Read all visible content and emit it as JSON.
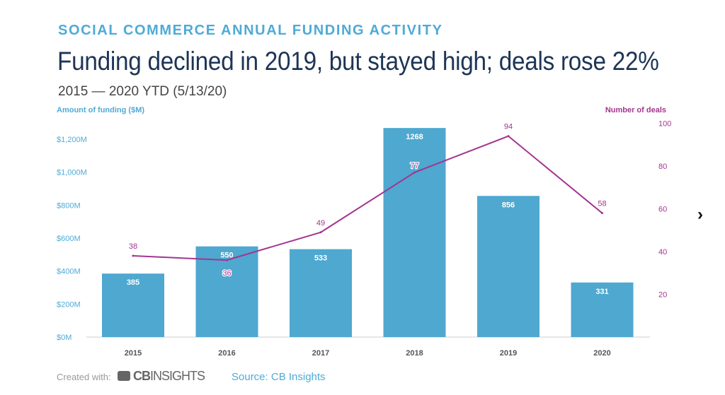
{
  "header": {
    "kicker": "SOCIAL COMMERCE ANNUAL FUNDING ACTIVITY",
    "title": "Funding declined in 2019, but stayed high; deals rose 22%",
    "subtitle": "2015 — 2020 YTD (5/13/20)"
  },
  "footer": {
    "created_with": "Created with:",
    "logo_text_bold": "CB",
    "logo_text": "INSIGHTS",
    "source": "Source: CB Insights"
  },
  "nav": {
    "next_label": "›"
  },
  "colors": {
    "bar": "#4ea8d0",
    "line": "#a3358f",
    "left_axis": "#4faad6",
    "right_axis": "#a3358f"
  },
  "chart_data": {
    "type": "bar+line",
    "categories": [
      "2015",
      "2016",
      "2017",
      "2018",
      "2019",
      "2020"
    ],
    "series": [
      {
        "name": "Amount of funding ($M)",
        "type": "bar",
        "axis": "left",
        "values": [
          385,
          550,
          533,
          1268,
          856,
          331
        ]
      },
      {
        "name": "Number of deals",
        "type": "line",
        "axis": "right",
        "values": [
          38,
          36,
          49,
          77,
          94,
          58
        ]
      }
    ],
    "left_axis": {
      "label": "Amount of funding ($M)",
      "ylim": [
        0,
        1200
      ],
      "ticks": [
        0,
        200,
        400,
        600,
        800,
        1000,
        1200
      ],
      "tick_labels": [
        "$0M",
        "$200M",
        "$400M",
        "$600M",
        "$800M",
        "$1,000M",
        "$1,200M"
      ]
    },
    "right_axis": {
      "label": "Number of deals",
      "ylim": [
        0,
        100
      ],
      "ticks": [
        20,
        40,
        60,
        80,
        100
      ],
      "tick_labels": [
        "20",
        "40",
        "60",
        "80",
        "100"
      ]
    },
    "grid": false
  }
}
